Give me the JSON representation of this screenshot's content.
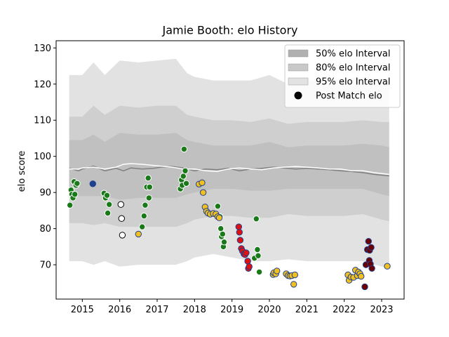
{
  "chart_data": {
    "type": "scatter",
    "title": "Jamie Booth: elo History",
    "xlabel": "",
    "ylabel": "elo score",
    "xlim": [
      2014.3,
      2023.6
    ],
    "ylim": [
      60.5,
      132
    ],
    "xticks": [
      2015,
      2016,
      2017,
      2018,
      2019,
      2020,
      2021,
      2022,
      2023
    ],
    "yticks": [
      70,
      80,
      90,
      100,
      110,
      120,
      130
    ],
    "legend_placement": "top-right",
    "legend": [
      {
        "label": "50% elo Interval",
        "color": "#b0b0b0"
      },
      {
        "label": "80% elo Interval",
        "color": "#c8c8c8"
      },
      {
        "label": "95% elo Interval",
        "color": "#e2e2e2"
      },
      {
        "label": "Post Match elo",
        "color": "#000000"
      }
    ],
    "bands": {
      "x": [
        2014.65,
        2015.0,
        2015.3,
        2015.6,
        2016.0,
        2016.5,
        2017.0,
        2017.5,
        2017.8,
        2018.0,
        2018.5,
        2019.0,
        2019.5,
        2020.0,
        2020.5,
        2021.0,
        2021.5,
        2022.0,
        2022.5,
        2023.0,
        2023.2
      ],
      "p95_upper": [
        122.5,
        122.5,
        126,
        122.5,
        126.5,
        126,
        126.5,
        127,
        123,
        122,
        121,
        121,
        121,
        122.5,
        120,
        121,
        121,
        121.5,
        122,
        121.5,
        121.5
      ],
      "p95_lower": [
        71,
        71,
        70,
        71,
        69.5,
        70,
        70,
        70,
        71,
        72,
        73,
        72,
        71,
        71,
        71.5,
        71,
        71,
        71,
        71,
        69.5,
        69.5
      ],
      "p80_upper": [
        111,
        111,
        114,
        111.5,
        114,
        113.5,
        114,
        114,
        111.5,
        111,
        110,
        110,
        109.5,
        110.5,
        109,
        109.5,
        109.5,
        109.5,
        110,
        109.5,
        109.5
      ],
      "p80_lower": [
        81.5,
        81.5,
        81,
        81.5,
        80.5,
        80.5,
        80.5,
        80.5,
        81.5,
        82.5,
        83.5,
        83.5,
        83,
        83,
        84,
        83.5,
        83.5,
        83.5,
        84,
        82.5,
        82
      ],
      "p50_upper": [
        104.5,
        104.5,
        106,
        104,
        106.5,
        106,
        106,
        106.5,
        104.5,
        104,
        103,
        103,
        103,
        104,
        102.5,
        103,
        103,
        103,
        103.5,
        103,
        102.5
      ],
      "p50_lower": [
        89,
        89,
        89,
        89,
        88,
        88.5,
        88.5,
        88.5,
        89.5,
        90,
        91,
        91,
        90.5,
        90.5,
        91,
        91,
        91,
        91,
        91,
        89.5,
        89
      ]
    },
    "mean_line": {
      "x": [
        2014.65,
        2014.9,
        2015.0,
        2015.3,
        2015.6,
        2015.9,
        2016.1,
        2016.3,
        2016.6,
        2016.9,
        2017.1,
        2017.4,
        2017.7,
        2018.0,
        2018.3,
        2018.6,
        2018.9,
        2019.2,
        2019.5,
        2019.8,
        2020.1,
        2020.4,
        2020.7,
        2021.0,
        2021.3,
        2021.6,
        2021.9,
        2022.2,
        2022.5,
        2022.8,
        2023.2
      ],
      "median": [
        96.7,
        96.0,
        96.5,
        97.3,
        96.0,
        96.7,
        96.0,
        96.8,
        96.5,
        96.7,
        97.0,
        97.2,
        96.8,
        96.0,
        96.5,
        96.3,
        96.7,
        96.0,
        96.5,
        96.7,
        97.0,
        96.8,
        96.5,
        96.7,
        96.5,
        96.3,
        96.0,
        95.8,
        95.5,
        95.0,
        94.6
      ],
      "mean": [
        96.5,
        96.5,
        96.8,
        97.0,
        96.5,
        97.0,
        97.8,
        98.0,
        97.8,
        97.5,
        97.3,
        97.0,
        96.5,
        96.5,
        96.0,
        95.8,
        96.5,
        96.8,
        96.5,
        96.3,
        96.8,
        97.0,
        97.2,
        97.0,
        96.8,
        96.5,
        96.5,
        96.0,
        96.0,
        95.5,
        95.0
      ]
    },
    "series": [
      {
        "color": "#1a7a1a",
        "points": [
          [
            2014.67,
            86.5
          ],
          [
            2014.7,
            90.7
          ],
          [
            2014.72,
            89.5
          ],
          [
            2014.75,
            88.5
          ],
          [
            2014.78,
            93.0
          ],
          [
            2014.8,
            89.5
          ],
          [
            2014.83,
            92.0
          ],
          [
            2014.86,
            92.5
          ],
          [
            2015.58,
            89.8
          ],
          [
            2015.62,
            88.5
          ],
          [
            2015.66,
            89.2
          ],
          [
            2015.68,
            84.3
          ],
          [
            2015.72,
            86.7
          ],
          [
            2016.6,
            80.5
          ],
          [
            2016.65,
            83.5
          ],
          [
            2016.68,
            86.5
          ],
          [
            2016.72,
            91.5
          ],
          [
            2016.76,
            94.0
          ],
          [
            2016.78,
            88.5
          ],
          [
            2016.8,
            91.5
          ],
          [
            2017.62,
            91.0
          ],
          [
            2017.65,
            93.5
          ],
          [
            2017.67,
            92.0
          ],
          [
            2017.7,
            94.5
          ],
          [
            2017.72,
            102.0
          ],
          [
            2017.75,
            96.0
          ],
          [
            2017.78,
            92.5
          ],
          [
            2018.62,
            86.2
          ],
          [
            2018.68,
            83.3
          ],
          [
            2018.7,
            80.0
          ],
          [
            2018.72,
            77.8
          ],
          [
            2018.75,
            78.5
          ],
          [
            2018.77,
            75.0
          ],
          [
            2018.79,
            76.3
          ],
          [
            2019.6,
            71.8
          ],
          [
            2019.65,
            82.7
          ],
          [
            2019.68,
            74.2
          ],
          [
            2019.7,
            72.5
          ],
          [
            2019.73,
            68.0
          ]
        ]
      },
      {
        "color": "#1f3f8f",
        "points": [
          [
            2015.28,
            92.4
          ]
        ]
      },
      {
        "color": "#ffffff",
        "points": [
          [
            2016.03,
            86.7
          ],
          [
            2016.05,
            82.8
          ],
          [
            2016.07,
            78.2
          ]
        ]
      },
      {
        "color": "#f0c020",
        "points": [
          [
            2016.5,
            78.5
          ],
          [
            2018.12,
            92.3
          ],
          [
            2018.2,
            92.7
          ],
          [
            2018.23,
            90.0
          ],
          [
            2018.28,
            86.0
          ],
          [
            2018.32,
            84.8
          ],
          [
            2018.36,
            84.3
          ],
          [
            2018.42,
            84.0
          ],
          [
            2018.5,
            84.2
          ],
          [
            2018.57,
            84.0
          ],
          [
            2018.62,
            83.3
          ],
          [
            2018.66,
            83.0
          ],
          [
            2020.1,
            67.3
          ],
          [
            2020.12,
            67.8
          ],
          [
            2020.17,
            67.5
          ],
          [
            2020.2,
            68.3
          ],
          [
            2020.45,
            67.5
          ],
          [
            2020.5,
            67.0
          ],
          [
            2020.55,
            66.9
          ],
          [
            2020.6,
            67.0
          ],
          [
            2020.65,
            64.6
          ],
          [
            2020.68,
            67.2
          ],
          [
            2022.1,
            67.2
          ],
          [
            2022.13,
            65.7
          ],
          [
            2022.18,
            66.6
          ],
          [
            2022.25,
            66.5
          ],
          [
            2022.3,
            68.5
          ],
          [
            2022.35,
            67.0
          ],
          [
            2022.38,
            68.0
          ],
          [
            2022.42,
            67.5
          ],
          [
            2022.45,
            66.8
          ],
          [
            2023.15,
            69.6
          ]
        ]
      },
      {
        "color": "#e01010",
        "points": [
          [
            2019.18,
            80.5
          ],
          [
            2019.2,
            79.0
          ],
          [
            2019.22,
            76.8
          ],
          [
            2019.25,
            74.5
          ],
          [
            2019.28,
            73.8
          ],
          [
            2019.32,
            73.0
          ],
          [
            2019.35,
            72.8
          ],
          [
            2019.38,
            73.3
          ],
          [
            2019.42,
            71.0
          ],
          [
            2019.44,
            69.0
          ],
          [
            2019.46,
            69.5
          ]
        ]
      },
      {
        "color": "#6b0000",
        "points": [
          [
            2022.55,
            63.9
          ],
          [
            2022.58,
            70.0
          ],
          [
            2022.62,
            74.2
          ],
          [
            2022.65,
            76.5
          ],
          [
            2022.67,
            71.2
          ],
          [
            2022.68,
            74.0
          ],
          [
            2022.7,
            70.2
          ],
          [
            2022.72,
            74.8
          ],
          [
            2022.74,
            69.0
          ]
        ]
      }
    ]
  }
}
